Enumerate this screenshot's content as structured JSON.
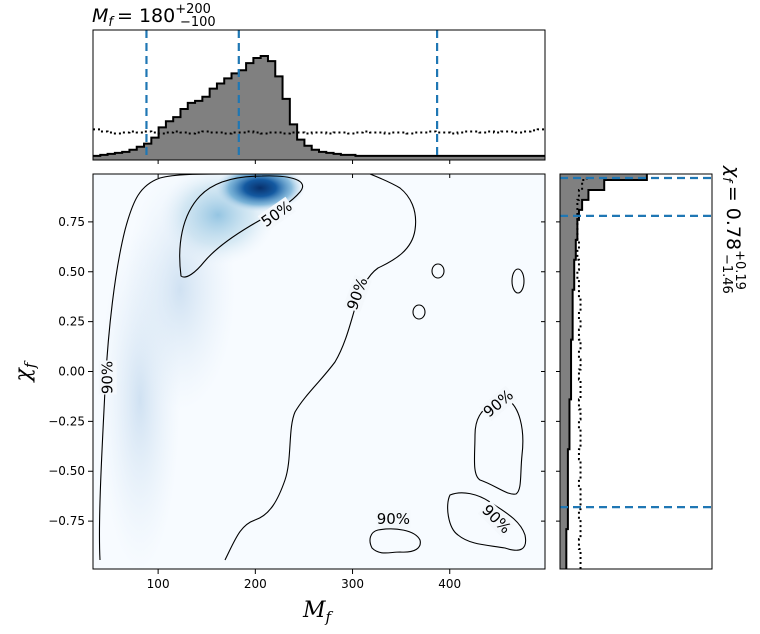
{
  "chart_data": {
    "type": "corner",
    "main": {
      "type": "heatmap",
      "x_label_base": "M",
      "x_label_sub": "f",
      "y_label_base": "χ",
      "y_label_sub": "f",
      "xlim": [
        33,
        498
      ],
      "ylim": [
        -0.99,
        0.99
      ],
      "x_ticks": [
        100,
        200,
        300,
        400
      ],
      "y_ticks": [
        -0.75,
        -0.5,
        -0.25,
        0.0,
        0.25,
        0.5,
        0.75
      ],
      "x_tick_labels": [
        "100",
        "200",
        "300",
        "400"
      ],
      "y_tick_labels": [
        "−0.75",
        "−0.50",
        "−0.25",
        "0.00",
        "0.25",
        "0.50",
        "0.75"
      ],
      "density_peak": {
        "x": 205,
        "y": 0.92
      },
      "contour_labels": [
        {
          "text": "50%",
          "x": 222,
          "y": 0.79,
          "angle": -35
        },
        {
          "text": "90%",
          "x": 48,
          "y": -0.03,
          "angle": -90
        },
        {
          "text": "90%",
          "x": 305,
          "y": 0.39,
          "angle": -70
        },
        {
          "text": "90%",
          "x": 450,
          "y": -0.16,
          "angle": -40
        },
        {
          "text": "90%",
          "x": 342,
          "y": -0.74,
          "angle": 0
        },
        {
          "text": "90%",
          "x": 448,
          "y": -0.74,
          "angle": 45
        }
      ],
      "colors": {
        "low": "#f7fbff",
        "high": "#08519c",
        "contour": "#000000"
      }
    },
    "top_marginal": {
      "type": "histogram",
      "title_prefix": "M",
      "title_sub": "f",
      "title_value": "= 180",
      "title_plus": "+200",
      "title_minus": "−100",
      "bin_start": 33,
      "bin_width": 7.5,
      "posterior": [
        4,
        5,
        6,
        7,
        8,
        10,
        13,
        16,
        22,
        32,
        38,
        42,
        50,
        56,
        58,
        62,
        70,
        75,
        80,
        85,
        88,
        95,
        100,
        102,
        97,
        82,
        60,
        35,
        20,
        14,
        10,
        8,
        7,
        6,
        5,
        5,
        4,
        4,
        4,
        4,
        4,
        4,
        4,
        4,
        4,
        4,
        4,
        4,
        4,
        4,
        4,
        4,
        4,
        4,
        4,
        4,
        4,
        4,
        4,
        4,
        4,
        4
      ],
      "prior": [
        30,
        28,
        27,
        26,
        27,
        28,
        27,
        28,
        27,
        26,
        27,
        28,
        27,
        26,
        27,
        28,
        27,
        27,
        26,
        27,
        27,
        28,
        27,
        26,
        27,
        27,
        26,
        27,
        27,
        26,
        27,
        27,
        26,
        27,
        27,
        26,
        27,
        28,
        27,
        27,
        26,
        27,
        27,
        26,
        27,
        27,
        28,
        27,
        27,
        26,
        27,
        28,
        28,
        27,
        28,
        27,
        28,
        28,
        27,
        28,
        29,
        30
      ],
      "quantile_lines": [
        88,
        183,
        387
      ],
      "colors": {
        "fill": "#808080",
        "line": "#1f77b4"
      }
    },
    "right_marginal": {
      "type": "histogram",
      "title_prefix": "χ",
      "title_sub": "f",
      "title_value": "= 0.78",
      "title_plus": "+0.19",
      "title_minus": "−1.46",
      "bin_start": -0.99,
      "bin_width": 0.05,
      "posterior": [
        4,
        4,
        4,
        4,
        5,
        5,
        5,
        5,
        5,
        5,
        5,
        5,
        6,
        6,
        6,
        6,
        6,
        7,
        7,
        7,
        7,
        7,
        7,
        8,
        8,
        8,
        8,
        8,
        9,
        9,
        9,
        10,
        10,
        11,
        11,
        12,
        14,
        18,
        28,
        55
      ],
      "prior": [
        13,
        13,
        12,
        13,
        13,
        12,
        13,
        13,
        12,
        13,
        13,
        12,
        13,
        13,
        12,
        13,
        12,
        13,
        13,
        12,
        13,
        12,
        13,
        12,
        13,
        12,
        13,
        12,
        12,
        11,
        12,
        11,
        12,
        11,
        11,
        11,
        11,
        12,
        14,
        17
      ],
      "quantile_lines": [
        -0.68,
        0.78,
        0.97
      ],
      "colors": {
        "fill": "#808080",
        "line": "#1f77b4"
      }
    }
  }
}
